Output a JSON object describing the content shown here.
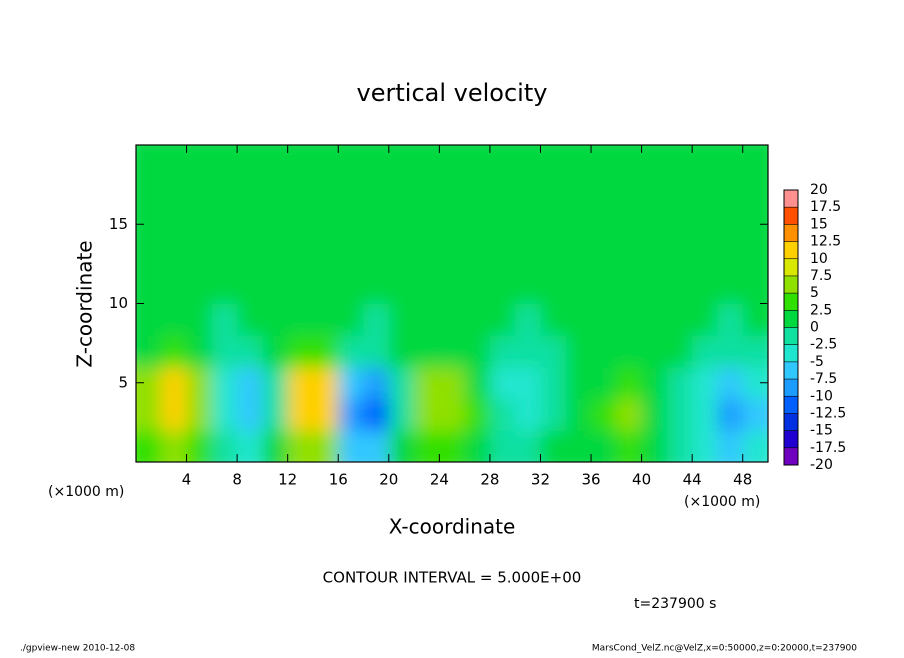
{
  "chart_data": {
    "type": "contour",
    "title": "vertical velocity",
    "x_label": "X-coordinate",
    "y_label": "Z-coordinate",
    "x_unit": "(×1000 m)",
    "contour_interval": "CONTOUR INTERVAL = 5.000E+00",
    "time_label": "t=237900 s",
    "footer_left": "./gpview-new  2010-12-08",
    "footer_right": "MarsCond_VelZ.nc@VelZ,x=0:50000,z=0:20000,t=237900",
    "xlim": [
      0,
      50
    ],
    "ylim": [
      0,
      20
    ],
    "xticks": [
      4,
      8,
      12,
      16,
      20,
      24,
      28,
      32,
      36,
      40,
      44,
      48
    ],
    "yticks": [
      5,
      10,
      15
    ],
    "x": [
      1,
      3,
      5,
      7,
      9,
      11,
      13,
      15,
      17,
      19,
      21,
      23,
      25,
      27,
      29,
      31,
      33,
      35,
      37,
      39,
      41,
      43,
      45,
      47,
      49
    ],
    "z": [
      1,
      3,
      5,
      7,
      9,
      11,
      13,
      15,
      17,
      19
    ],
    "values": [
      [
        4,
        7,
        4,
        -2,
        -3,
        0,
        6,
        6,
        -6,
        -7,
        0,
        4,
        4,
        2,
        -1,
        -1,
        0,
        1,
        2,
        3,
        1,
        -1,
        -3,
        -6,
        -4
      ],
      [
        6,
        12,
        7,
        -4,
        -6,
        -1,
        10,
        12,
        -9,
        -12,
        -1,
        7,
        7,
        3,
        -2,
        -3,
        -1,
        1,
        3,
        5,
        2,
        -1,
        -5,
        -10,
        -6
      ],
      [
        5,
        11,
        6,
        -5,
        -6,
        -1,
        11,
        10,
        -6,
        -8,
        -1,
        5,
        5,
        2,
        -3,
        -4,
        -1,
        0,
        2,
        3,
        1,
        -1,
        -4,
        -6,
        -4
      ],
      [
        2,
        4,
        2,
        -2,
        -2,
        0,
        4,
        3,
        -2,
        -2,
        0,
        1,
        1,
        0,
        -1,
        -2,
        -1,
        0,
        0,
        1,
        0,
        0,
        -1,
        -2,
        -1
      ],
      [
        0,
        1,
        0,
        -1,
        0,
        0,
        1,
        1,
        0,
        -1,
        0,
        0,
        0,
        0,
        0,
        -1,
        0,
        0,
        0,
        0,
        0,
        0,
        0,
        -1,
        0
      ],
      [
        0,
        0,
        0,
        0,
        0,
        1,
        0,
        0,
        0,
        0,
        0,
        0,
        0,
        0,
        0,
        0,
        0,
        0,
        0,
        0,
        0,
        0,
        0,
        0,
        0
      ],
      [
        0,
        0,
        0,
        0,
        0,
        0,
        0,
        0,
        0,
        0,
        0,
        0,
        0,
        0,
        0,
        0,
        0,
        0,
        0,
        0,
        0,
        0,
        0,
        0,
        0
      ],
      [
        0,
        0,
        0,
        0,
        0,
        0,
        0,
        0,
        0,
        0,
        0,
        0,
        0,
        0,
        0,
        0,
        0,
        0,
        0,
        0,
        0,
        0,
        0,
        0,
        0
      ],
      [
        0,
        0,
        0,
        0,
        0,
        0,
        0,
        0,
        0,
        0,
        0,
        0,
        0,
        0,
        0,
        0,
        0,
        0,
        0,
        0,
        0,
        0,
        0,
        0,
        0
      ],
      [
        0,
        0,
        0,
        0,
        0,
        0,
        0,
        0,
        0,
        0,
        0,
        0,
        0,
        0,
        0,
        0,
        0,
        0,
        0,
        0,
        0,
        0,
        0,
        0,
        0
      ]
    ],
    "levels": [
      -20,
      -17.5,
      -15,
      -12.5,
      -10,
      -7.5,
      -5,
      -2.5,
      0,
      2.5,
      5,
      7.5,
      10,
      12.5,
      15,
      17.5,
      20
    ],
    "colors": [
      "#7000c0",
      "#2000d0",
      "#0030e0",
      "#0060ff",
      "#1c9cff",
      "#30c8ff",
      "#20e6d0",
      "#10e0a0",
      "#00d840",
      "#30e000",
      "#90e000",
      "#d8e800",
      "#ffd000",
      "#ff9000",
      "#ff5000",
      "#ff9090"
    ]
  }
}
